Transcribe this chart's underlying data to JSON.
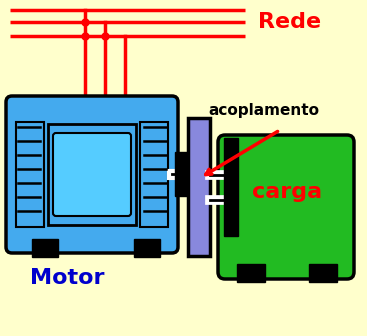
{
  "bg_color": "#FFFFCC",
  "motor_color": "#44AAEE",
  "motor_dark": "#000000",
  "coupling_color": "#8888DD",
  "load_color": "#22BB22",
  "red_color": "#FF0000",
  "label_motor": "Motor",
  "label_motor_color": "#0000CC",
  "label_rede": "Rede",
  "label_rede_color": "#FF0000",
  "label_acoplamento": "acoplamento",
  "label_carga": "carga",
  "label_carga_color": "#FF0000",
  "shaft_color": "#FFFFFF",
  "stripe_color": "#000000"
}
